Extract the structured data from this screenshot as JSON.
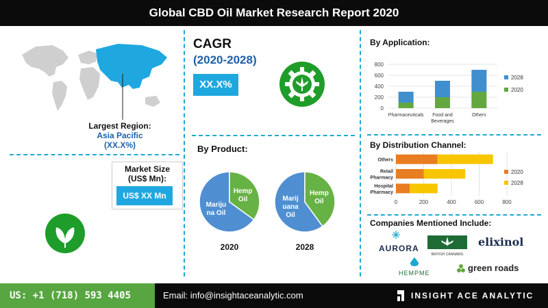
{
  "header": {
    "title": "Global CBD Oil Market Research Report 2020"
  },
  "region": {
    "label": "Largest Region:",
    "name": "Asia Pacific",
    "share": "(XX.X%)"
  },
  "market_size": {
    "label_line1": "Market Size",
    "label_line2": "(US$ Mn):",
    "value": "US$ XX Mn"
  },
  "cagr": {
    "title": "CAGR",
    "years": "(2020-2028)",
    "value": "XX.X%"
  },
  "colors": {
    "accent_blue": "#1fa8e0",
    "green": "#1f9d2a",
    "bar_green": "#62a83f",
    "bar_blue": "#3f8fcf",
    "bar_orange": "#e87d22",
    "bar_yellow": "#f7c600",
    "pie_blue": "#4f8fd1",
    "pie_green": "#67b245"
  },
  "icons": {
    "map": "world-map-icon",
    "cagr": "cannabis-gear-icon",
    "leaf": "leaf-icon",
    "logo": "insight-ace-logo-icon"
  },
  "product": {
    "title": "By Product:"
  },
  "application": {
    "title": "By Application:"
  },
  "distribution": {
    "title": "By Distribution Channel:"
  },
  "companies": {
    "title": "Companies Mentioned Include:",
    "items": [
      "AURORA",
      "BRITISH CANNABIS",
      "elixinol",
      "HEMPME",
      "green roads"
    ]
  },
  "footer": {
    "phone": "US: +1 (718) 593 4405",
    "email": "Email: info@insightaceanalytic.com",
    "brand": "INSIGHT ACE ANALYTIC"
  },
  "chart_data": [
    {
      "type": "pie",
      "title": "By Product:",
      "year": "2020",
      "slices": [
        {
          "label": "Hemp Oil",
          "value": 35
        },
        {
          "label": "Marijuana Oil",
          "value": 65
        }
      ],
      "label_lines": {
        "hemp": [
          "Hemp",
          "Oil"
        ],
        "marijuana": [
          "Mariju",
          "na Oil"
        ]
      }
    },
    {
      "type": "pie",
      "title": "By Product:",
      "year": "2028",
      "slices": [
        {
          "label": "Hemp Oil",
          "value": 40
        },
        {
          "label": "Marijuana Oil",
          "value": 60
        }
      ],
      "label_lines": {
        "hemp": [
          "Hemp",
          "Oil"
        ],
        "marijuana": [
          "Marij",
          "uana",
          "Oil"
        ]
      }
    },
    {
      "type": "bar",
      "stacked": true,
      "orientation": "vertical",
      "title": "By Application:",
      "categories": [
        "Pharmaceuticals",
        "Food and Beverages",
        "Others"
      ],
      "category_lines": [
        [
          "Pharmaceuticals"
        ],
        [
          "Food and",
          "Beverages"
        ],
        [
          "Others"
        ]
      ],
      "series": [
        {
          "name": "2020",
          "values": [
            100,
            200,
            300
          ]
        },
        {
          "name": "2028",
          "values": [
            200,
            300,
            400
          ]
        }
      ],
      "ylim": [
        0,
        800
      ],
      "yticks": [
        0,
        200,
        400,
        600,
        800
      ],
      "grid": true,
      "legend": "right"
    },
    {
      "type": "bar",
      "stacked": true,
      "orientation": "horizontal",
      "title": "By Distribution Channel:",
      "categories": [
        "Others",
        "Retail Pharmacy",
        "Hospital Pharmacy"
      ],
      "category_lines": [
        [
          "Others"
        ],
        [
          "Retail",
          "Pharmacy"
        ],
        [
          "Hospital",
          "Pharmacy"
        ]
      ],
      "series": [
        {
          "name": "2020",
          "values": [
            300,
            200,
            100
          ]
        },
        {
          "name": "2028",
          "values": [
            400,
            300,
            200
          ]
        }
      ],
      "xlim": [
        0,
        800
      ],
      "xticks": [
        0,
        200,
        400,
        600,
        800
      ],
      "grid": true,
      "legend": "right"
    }
  ]
}
